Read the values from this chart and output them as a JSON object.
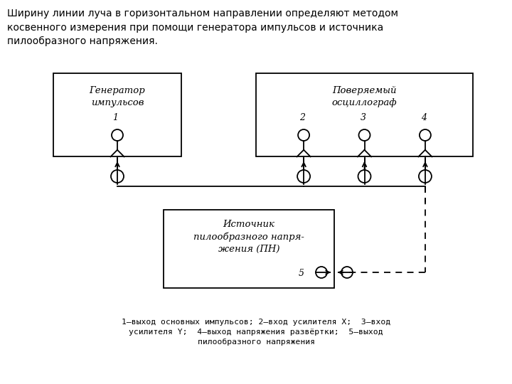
{
  "title_text": "Ширину линии луча в горизонтальном направлении определяют методом\nкосвенного измерения при помощи генератора импульсов и источника\nпилообразного напряжения.",
  "box_gen_label": "Генератор\nимпульсов",
  "box_osc_label": "Поверяемый\nосциллограф",
  "box_pn_label": "Источник\nпилообразного напря-\nжения (ПН)",
  "caption_line1": "1—выход основных импульсов; 2—вход усилителя X;  3—вход",
  "caption_line2": "усилителя Y;  4—выход напряжения развёртки;  5—выход",
  "caption_line3": "пилообразного напряжения",
  "background": "#ffffff",
  "line_color": "#000000"
}
